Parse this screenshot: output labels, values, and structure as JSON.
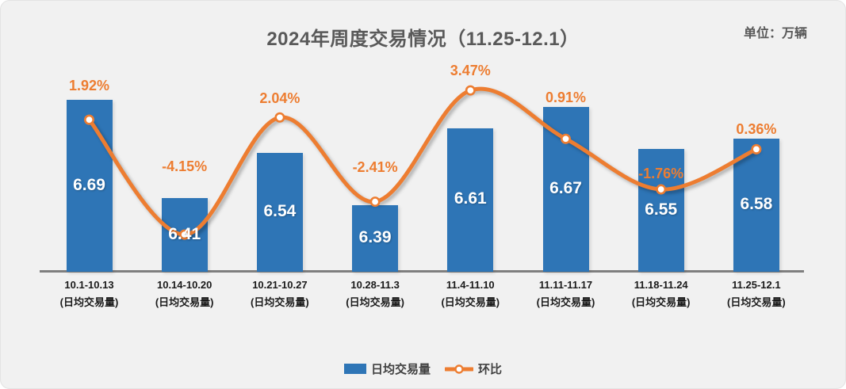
{
  "header": {
    "title": "2024年周度交易情况（11.25-12.1）",
    "unit_label": "单位：万辆"
  },
  "legend": {
    "bar_label": "日均交易量",
    "line_label": "环比"
  },
  "colors": {
    "background": "#f1f1f1",
    "bar": "#2e75b6",
    "line": "#ed7d31",
    "title_text": "#595959",
    "axis_line": "#7f7f7f",
    "tick_text": "#1a1a1a",
    "bar_value_text": "#ffffff",
    "percent_text": "#ed7d31"
  },
  "chart_data": {
    "type": "bar",
    "subtype": "bar+smooth-line-combo",
    "title": "2024年周度交易情况（11.25-12.1）",
    "unit": "万辆",
    "categories": [
      "10.1-10.13",
      "10.14-10.20",
      "10.21-10.27",
      "10.28-11.3",
      "11.4-11.10",
      "11.11-11.17",
      "11.18-11.24",
      "11.25-12.1"
    ],
    "category_sublabel": "(日均交易量)",
    "series": [
      {
        "name": "日均交易量",
        "type": "bar",
        "axis": "primary",
        "values": [
          "6.69",
          "6.41",
          "6.54",
          "6.39",
          "6.61",
          "6.67",
          "6.55",
          "6.58"
        ]
      },
      {
        "name": "环比",
        "type": "line",
        "axis": "secondary",
        "values_pct": [
          1.92,
          -4.15,
          2.04,
          -2.41,
          3.47,
          0.91,
          -1.76,
          0.36
        ],
        "labels": [
          "1.92%",
          "-4.15%",
          "2.04%",
          "-2.41%",
          "3.47%",
          "0.91%",
          "-1.76%",
          "0.36%"
        ]
      }
    ],
    "primary_ylim": [
      6.2,
      6.77
    ],
    "secondary_ylim_pct": [
      -6.11,
      4.44
    ],
    "grid": false,
    "y_axis_labels_visible": false,
    "legend_position": "bottom"
  }
}
